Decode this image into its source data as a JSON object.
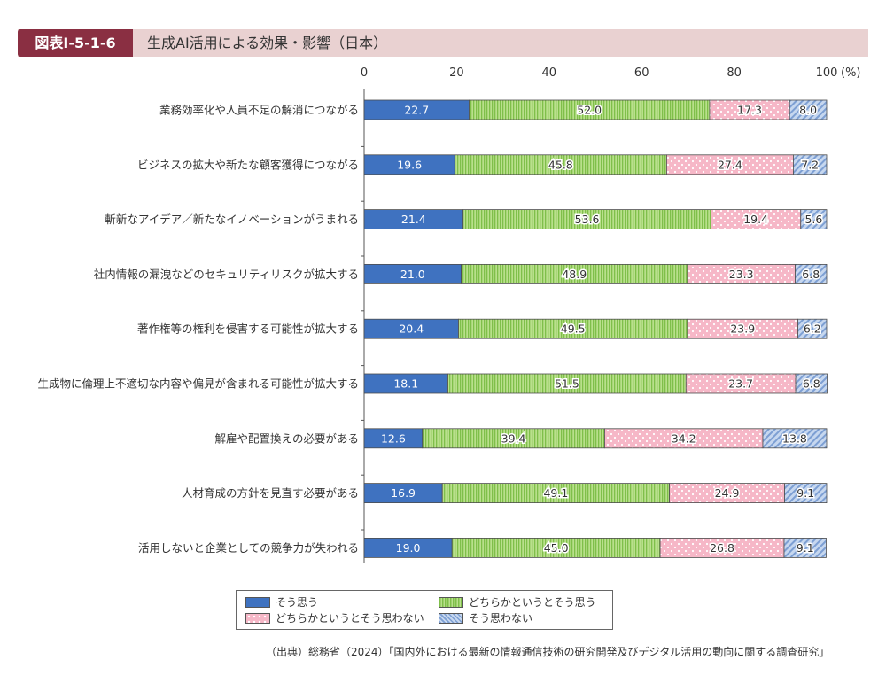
{
  "figure": {
    "label": "図表Ⅰ-5-1-6",
    "title": "生成AI活用による効果・影響（日本）"
  },
  "chart_data": {
    "type": "bar",
    "orientation": "horizontal",
    "stacked": true,
    "xlim": [
      0,
      100
    ],
    "x_ticks": [
      "0",
      "20",
      "40",
      "60",
      "80",
      "100"
    ],
    "x_unit": "(%)",
    "categories": [
      "業務効率化や人員不足の解消につながる",
      "ビジネスの拡大や新たな顧客獲得につながる",
      "斬新なアイデア／新たなイノベーションがうまれる",
      "社内情報の漏洩などのセキュリティリスクが拡大する",
      "著作権等の権利を侵害する可能性が拡大する",
      "生成物に倫理上不適切な内容や偏見が含まれる可能性が拡大する",
      "解雇や配置換えの必要がある",
      "人材育成の方針を見直す必要がある",
      "活用しないと企業としての競争力が失われる"
    ],
    "series": [
      {
        "name": "そう思う",
        "color": "#3f72c0",
        "pattern": "solid",
        "values": [
          22.7,
          19.6,
          21.4,
          21.0,
          20.4,
          18.1,
          12.6,
          16.9,
          19.0
        ]
      },
      {
        "name": "どちらかというとそう思う",
        "color": "#9fd26a",
        "pattern": "vertical-stripes",
        "values": [
          52.0,
          45.8,
          53.6,
          48.9,
          49.5,
          51.5,
          39.4,
          49.1,
          45.0
        ]
      },
      {
        "name": "どちらかというとそう思わない",
        "color": "#f6b7c7",
        "pattern": "dots",
        "values": [
          17.3,
          27.4,
          19.4,
          23.3,
          23.9,
          23.7,
          34.2,
          24.9,
          26.8
        ]
      },
      {
        "name": "そう思わない",
        "color": "#a9c3e6",
        "pattern": "diagonal-stripes",
        "values": [
          8.0,
          7.2,
          5.6,
          6.8,
          6.2,
          6.8,
          13.8,
          9.1,
          9.1
        ]
      }
    ],
    "legend_position": "bottom-center",
    "grid": false
  },
  "source": "（出典）総務省（2024）「国内外における最新の情報通信技術の研究開発及びデジタル活用の動向に関する調査研究」"
}
